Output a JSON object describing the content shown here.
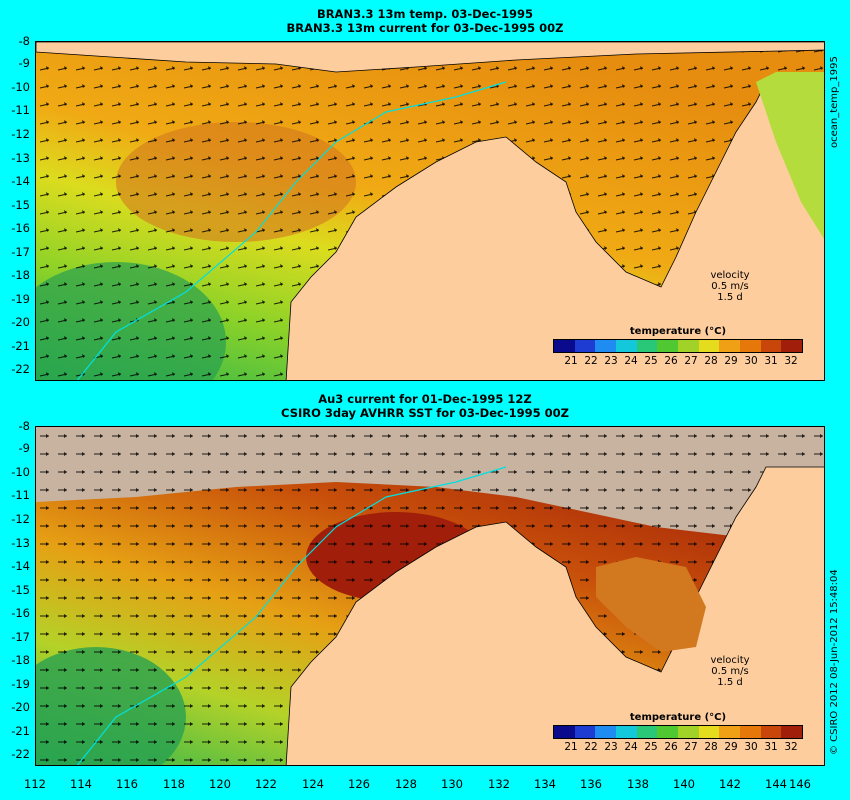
{
  "top_panel": {
    "title1": "BRAN3.3 13m temp. 03-Dec-1995",
    "title2": "BRAN3.3 13m current for 03-Dec-1995 00Z",
    "side_label": "ocean_temp_1995",
    "velocity_label": "velocity",
    "velocity_scale": "0.5 m/s",
    "velocity_time": "1.5 d"
  },
  "bottom_panel": {
    "title1": "Au3 current for 01-Dec-1995 12Z",
    "title2": "CSIRO 3day AVHRR SST for 03-Dec-1995 00Z",
    "side_label": "© CSIRO 2012  08-Jun-2012 15:48:04",
    "velocity_label": "velocity",
    "velocity_scale": "0.5 m/s",
    "velocity_time": "1.5 d"
  },
  "legend": {
    "title": "temperature (°C)",
    "ticks": [
      "21",
      "22",
      "23",
      "24",
      "25",
      "26",
      "27",
      "28",
      "29",
      "30",
      "31",
      "32"
    ],
    "colors": [
      "#0a0a8c",
      "#1e3cd2",
      "#1e8cf0",
      "#14c8dc",
      "#28c878",
      "#50c832",
      "#a0d228",
      "#e6dc1e",
      "#f0a014",
      "#e6780a",
      "#c8460a",
      "#a01e0a"
    ]
  },
  "y_axis": [
    "-8",
    "-9",
    "-10",
    "-11",
    "-12",
    "-13",
    "-14",
    "-15",
    "-16",
    "-17",
    "-18",
    "-19",
    "-20",
    "-21",
    "-22"
  ],
  "x_axis": [
    "112",
    "114",
    "116",
    "118",
    "120",
    "122",
    "124",
    "126",
    "128",
    "130",
    "132",
    "134",
    "136",
    "138",
    "140",
    "142",
    "144",
    "146"
  ],
  "colors": {
    "background": "#00ffff",
    "land": "#fdcd9e",
    "cloud": "#c8b3a0",
    "coast_line": "#00e0e0"
  }
}
